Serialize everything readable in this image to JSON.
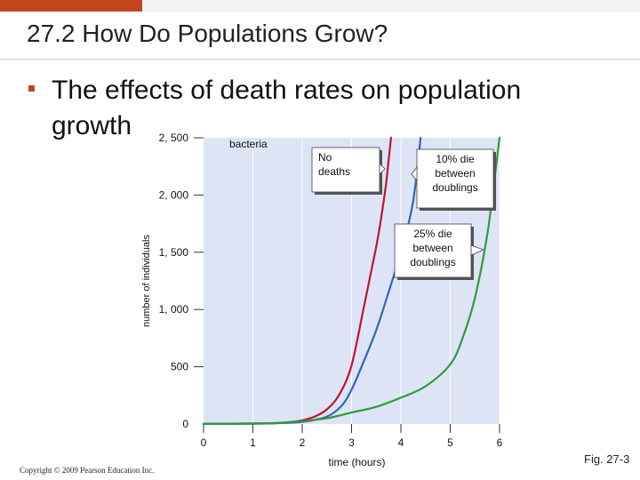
{
  "slide": {
    "title": "27.2 How Do Populations Grow?",
    "bullet": "The effects of death rates on population growth",
    "copyright": "Copyright © 2009 Pearson Education Inc.",
    "figure_label": "Fig. 27-3"
  },
  "colors": {
    "accent": "#c0471c",
    "plot_background": "#dde4f5",
    "no_deaths": "#c0142f",
    "ten_percent": "#2e68b4",
    "twenty_five_percent": "#2e9b3c"
  },
  "chart_data": {
    "type": "line",
    "title": "bacteria",
    "xlabel": "time (hours)",
    "ylabel": "number of individuals",
    "xlim": [
      0,
      6
    ],
    "ylim": [
      0,
      2500
    ],
    "xticks": [
      0,
      1,
      2,
      3,
      4,
      5,
      6
    ],
    "yticks": [
      0,
      500,
      1000,
      1500,
      2000,
      2500
    ],
    "ytick_labels": [
      "0",
      "500",
      "1, 000",
      "1, 500",
      "2, 000",
      "2, 500"
    ],
    "grid": "vertical",
    "series": [
      {
        "name": "No deaths",
        "color": "#c0142f",
        "x": [
          0,
          0.5,
          1.0,
          1.5,
          1.75,
          2.0,
          2.25,
          2.5,
          2.75,
          3.0,
          3.25,
          3.5,
          3.6,
          3.7,
          3.75,
          3.8
        ],
        "y": [
          1,
          2,
          4,
          8,
          16,
          32,
          64,
          128,
          256,
          512,
          1024,
          1550,
          1800,
          2100,
          2300,
          2500
        ]
      },
      {
        "name": "10% die between doublings",
        "color": "#2e68b4",
        "x": [
          0,
          1.0,
          1.5,
          2.0,
          2.5,
          2.8,
          3.0,
          3.25,
          3.5,
          3.75,
          4.0,
          4.1,
          4.25,
          4.35,
          4.4
        ],
        "y": [
          1,
          3,
          8,
          18,
          65,
          160,
          300,
          550,
          820,
          1150,
          1500,
          1650,
          1950,
          2300,
          2500
        ]
      },
      {
        "name": "25% die between doublings",
        "color": "#2e9b3c",
        "x": [
          0,
          1.0,
          1.5,
          2.0,
          2.5,
          3.0,
          3.5,
          4.0,
          4.5,
          5.0,
          5.25,
          5.5,
          5.75,
          5.9,
          6.0
        ],
        "y": [
          1,
          5,
          10,
          25,
          50,
          100,
          150,
          230,
          330,
          520,
          750,
          1100,
          1650,
          2150,
          2500
        ]
      }
    ]
  }
}
